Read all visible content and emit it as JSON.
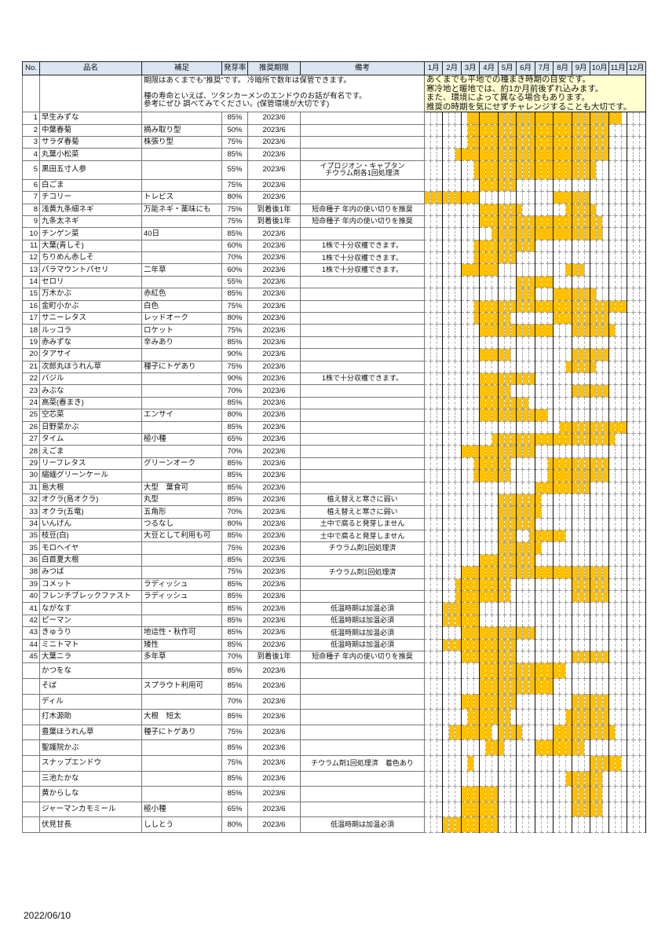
{
  "colors": {
    "sowing_fill": "#ffc000",
    "header_bg": "#dce6f1",
    "note_bg": "#ffffd0"
  },
  "headers": {
    "no": "No.",
    "name": "品名",
    "supplement": "補足",
    "germination": "発芽率",
    "expiry": "推奨期限",
    "remarks": "備考",
    "months": [
      "1月",
      "2月",
      "3月",
      "4月",
      "5月",
      "6月",
      "7月",
      "8月",
      "9月",
      "10月",
      "11月",
      "12月"
    ]
  },
  "note_left": [
    "期限はあくまでも\"推奨\"です。 冷暗所で数年は保管できます。",
    "",
    "種の寿命といえば、ツタンカーメンのエンドウのお話が有名です。",
    "参考にぜひ 調べてみてください。(保管環境が大切です)"
  ],
  "note_right": [
    "あくまでも平地での種まき時期の目安です。",
    "寒冷地と暖地では、約1か月前後ずれ込みます。",
    "また、環境によって異なる場合もあります。",
    "推奨の時期を気にせずチャレンジすることも大切です。"
  ],
  "rows": [
    {
      "no": "1",
      "name": "早生みずな",
      "sup": "",
      "germ": "85%",
      "exp": "2023/6",
      "remarks": [],
      "sow": [
        [
          "3中",
          "11中"
        ]
      ]
    },
    {
      "no": "2",
      "name": "中葉春菊",
      "sup": "摘み取り型",
      "germ": "50%",
      "exp": "2023/6",
      "remarks": [],
      "sow": [
        [
          "3中",
          "10下"
        ]
      ]
    },
    {
      "no": "3",
      "name": "サラダ春菊",
      "sup": "株張り型",
      "germ": "75%",
      "exp": "2023/6",
      "remarks": [],
      "sow": [
        [
          "3中",
          "10下"
        ]
      ]
    },
    {
      "no": "4",
      "name": "丸葉小松菜",
      "sup": "",
      "germ": "85%",
      "exp": "2023/6",
      "remarks": [],
      "sow": [
        [
          "2下",
          "10下"
        ]
      ]
    },
    {
      "no": "5",
      "name": "黒田五寸人参",
      "sup": "",
      "germ": "55%",
      "exp": "2023/6",
      "remarks": [
        "イプロジオン・キャプタン",
        "チウラム剤各1回処理済"
      ],
      "sow": [
        [
          "3下",
          "10上"
        ]
      ],
      "tall": true
    },
    {
      "no": "6",
      "name": "白ごま",
      "sup": "",
      "germ": "75%",
      "exp": "2023/6",
      "remarks": [],
      "sow": [
        [
          "4上",
          "5下"
        ]
      ]
    },
    {
      "no": "7",
      "name": "チコリー",
      "sup": "トレビス",
      "germ": "80%",
      "exp": "2023/6",
      "remarks": [],
      "sow": [
        [
          "1上",
          "3下"
        ],
        [
          "8上",
          "9下"
        ]
      ]
    },
    {
      "no": "8",
      "name": "浅黄九条細ネギ",
      "sup": "万能ネギ・薬味にも",
      "germ": "75%",
      "exp": "到着後1年",
      "remarks": [
        "短命種子 年内の使い切りを推奨"
      ],
      "sow": [
        [
          "4上",
          "6上"
        ],
        [
          "8下",
          "10上"
        ]
      ]
    },
    {
      "no": "9",
      "name": "九条太ネギ",
      "sup": "",
      "germ": "75%",
      "exp": "到着後1年",
      "remarks": [
        "短命種子 年内の使い切りを推奨"
      ],
      "sow": [
        [
          "4上",
          "10中"
        ]
      ]
    },
    {
      "no": "10",
      "name": "チンゲン菜",
      "sup": "40日",
      "germ": "85%",
      "exp": "2023/6",
      "remarks": [],
      "sow": [
        [
          "4下",
          "10中"
        ]
      ]
    },
    {
      "no": "11",
      "name": "大葉(青しそ)",
      "sup": "",
      "germ": "60%",
      "exp": "2023/6",
      "remarks": [
        "1株で十分収穫できます。"
      ],
      "sow": [
        [
          "3下",
          "6下"
        ]
      ]
    },
    {
      "no": "12",
      "name": "ちりめん赤しそ",
      "sup": "",
      "germ": "70%",
      "exp": "2023/6",
      "remarks": [
        "1株で十分収穫できます。"
      ],
      "sow": [
        [
          "3下",
          "5下"
        ]
      ]
    },
    {
      "no": "13",
      "name": "パラマウントパセリ",
      "sup": "二年草",
      "germ": "60%",
      "exp": "2023/6",
      "remarks": [
        "1株で十分収穫できます。"
      ],
      "sow": [
        [
          "3上",
          "4下"
        ],
        [
          "8下",
          "9中"
        ]
      ]
    },
    {
      "no": "14",
      "name": "セロリ",
      "sup": "",
      "germ": "55%",
      "exp": "2023/6",
      "remarks": [],
      "sow": [
        [
          "6上",
          "7下"
        ]
      ]
    },
    {
      "no": "15",
      "name": "万木かぶ",
      "sup": "赤紅色",
      "germ": "85%",
      "exp": "2023/6",
      "remarks": [],
      "sow": [
        [
          "6上",
          "6下"
        ],
        [
          "8上",
          "10上"
        ]
      ]
    },
    {
      "no": "16",
      "name": "金町小かぶ",
      "sup": "白色",
      "germ": "75%",
      "exp": "2023/6",
      "remarks": [],
      "sow": [
        [
          "3下",
          "11下"
        ]
      ]
    },
    {
      "no": "17",
      "name": "サニーレタス",
      "sup": "レッドオーク",
      "germ": "80%",
      "exp": "2023/6",
      "remarks": [],
      "sow": [
        [
          "3下",
          "5中"
        ],
        [
          "8上",
          "10下"
        ]
      ]
    },
    {
      "no": "18",
      "name": "ルッコラ",
      "sup": "ロケット",
      "germ": "75%",
      "exp": "2023/6",
      "remarks": [],
      "sow": [
        [
          "4上",
          "7下"
        ],
        [
          "9上",
          "11上"
        ]
      ]
    },
    {
      "no": "19",
      "name": "赤みずな",
      "sup": "辛みあり",
      "germ": "85%",
      "exp": "2023/6",
      "remarks": [],
      "sow": []
    },
    {
      "no": "20",
      "name": "タアサイ",
      "sup": "",
      "germ": "90%",
      "exp": "2023/6",
      "remarks": [],
      "sow": [
        [
          "4上",
          "5中"
        ],
        [
          "9上",
          "10下"
        ]
      ]
    },
    {
      "no": "21",
      "name": "次郎丸ほうれん草",
      "sup": "種子にトゲあり",
      "germ": "75%",
      "exp": "2023/6",
      "remarks": [],
      "sow": [
        [
          "8下",
          "10上"
        ]
      ]
    },
    {
      "no": "22",
      "name": "バジル",
      "sup": "",
      "germ": "90%",
      "exp": "2023/6",
      "remarks": [
        "1株で十分収穫できます。"
      ],
      "sow": [
        [
          "4上",
          "6下"
        ]
      ]
    },
    {
      "no": "23",
      "name": "みぶな",
      "sup": "",
      "germ": "70%",
      "exp": "2023/6",
      "remarks": [],
      "sow": [
        [
          "4上",
          "5中"
        ],
        [
          "9上",
          "10下"
        ]
      ]
    },
    {
      "no": "24",
      "name": "高菜(春まき)",
      "sup": "",
      "germ": "85%",
      "exp": "2023/6",
      "remarks": [],
      "sow": [
        [
          "4上",
          "6中"
        ]
      ]
    },
    {
      "no": "25",
      "name": "空芯菜",
      "sup": "エンサイ",
      "germ": "80%",
      "exp": "2023/6",
      "remarks": [],
      "sow": [
        [
          "4上",
          "7中"
        ]
      ]
    },
    {
      "no": "26",
      "name": "日野菜かぶ",
      "sup": "",
      "germ": "85%",
      "exp": "2023/6",
      "remarks": [],
      "sow": [
        [
          "8中",
          "11下"
        ]
      ]
    },
    {
      "no": "27",
      "name": "タイム",
      "sup": "極小種",
      "germ": "65%",
      "exp": "2023/6",
      "remarks": [],
      "sow": [
        [
          "4下",
          "11上"
        ]
      ]
    },
    {
      "no": "28",
      "name": "えごま",
      "sup": "",
      "germ": "70%",
      "exp": "2023/6",
      "remarks": [],
      "sow": [
        [
          "3上",
          "6下"
        ]
      ]
    },
    {
      "no": "29",
      "name": "リーフレタス",
      "sup": "グリーンオーク",
      "germ": "85%",
      "exp": "2023/6",
      "remarks": [],
      "sow": [
        [
          "3下",
          "5中"
        ],
        [
          "7下",
          "10下"
        ]
      ]
    },
    {
      "no": "30",
      "name": "縮緬グリーンケール",
      "sup": "",
      "germ": "85%",
      "exp": "2023/6",
      "remarks": [],
      "sow": [
        [
          "3下",
          "5中"
        ],
        [
          "7下",
          "10下"
        ]
      ]
    },
    {
      "no": "31",
      "name": "島大根",
      "sup": "大型　葉食可",
      "germ": "85%",
      "exp": "2023/6",
      "remarks": [],
      "sow": [
        [
          "7上",
          "9下"
        ]
      ]
    },
    {
      "no": "32",
      "name": "オクラ(島オクラ)",
      "sup": "丸型",
      "germ": "85%",
      "exp": "2023/6",
      "remarks": [
        "植え替えと寒さに弱い"
      ],
      "sow": [
        [
          "5上",
          "7上"
        ]
      ]
    },
    {
      "no": "33",
      "name": "オクラ(五竜)",
      "sup": "五角形",
      "germ": "70%",
      "exp": "2023/6",
      "remarks": [
        "植え替えと寒さに弱い"
      ],
      "sow": [
        [
          "5上",
          "7上"
        ]
      ]
    },
    {
      "no": "34",
      "name": "いんげん",
      "sup": "つるなし",
      "germ": "80%",
      "exp": "2023/6",
      "remarks": [
        "土中で腐ると発芽しません"
      ],
      "sow": [
        [
          "5上",
          "6下"
        ]
      ]
    },
    {
      "no": "35",
      "name": "枝豆(白)",
      "sup": "大豆として利用も可",
      "germ": "85%",
      "exp": "2023/6",
      "remarks": [
        "土中で腐ると発芽しません"
      ],
      "sow": [
        [
          "5上",
          "5下"
        ],
        [
          "6下",
          "8中"
        ]
      ]
    },
    {
      "no": "35",
      "name": "モロヘイヤ",
      "sup": "",
      "germ": "75%",
      "exp": "2023/6",
      "remarks": [
        "チウラム剤1回処理済"
      ],
      "sow": [
        [
          "5上",
          "7上"
        ]
      ]
    },
    {
      "no": "36",
      "name": "白首夏大根",
      "sup": "",
      "germ": "85%",
      "exp": "2023/6",
      "remarks": [],
      "sow": [
        [
          "4上",
          "6下"
        ]
      ]
    },
    {
      "no": "38",
      "name": "みつば",
      "sup": "",
      "germ": "75%",
      "exp": "2023/6",
      "remarks": [
        "チウラム剤1回処理済"
      ],
      "sow": [
        [
          "3上",
          "10下"
        ]
      ]
    },
    {
      "no": "39",
      "name": "コメット",
      "sup": "ラディッシュ",
      "germ": "85%",
      "exp": "2023/6",
      "remarks": [],
      "sow": [
        [
          "2下",
          "5中"
        ],
        [
          "9上",
          "10下"
        ]
      ]
    },
    {
      "no": "40",
      "name": "フレンチブレックファスト",
      "sup": "ラディッシュ",
      "germ": "85%",
      "exp": "2023/6",
      "remarks": [],
      "sow": [
        [
          "2下",
          "5中"
        ],
        [
          "9上",
          "10下"
        ]
      ]
    },
    {
      "no": "41",
      "name": "ながなす",
      "sup": "",
      "germ": "85%",
      "exp": "2023/6",
      "remarks": [
        "低温時期は加温必須"
      ],
      "sow": [
        [
          "2上",
          "3下"
        ]
      ]
    },
    {
      "no": "42",
      "name": "ピーマン",
      "sup": "",
      "germ": "85%",
      "exp": "2023/6",
      "remarks": [
        "低温時期は加温必須"
      ],
      "sow": [
        [
          "2上",
          "3下"
        ]
      ]
    },
    {
      "no": "43",
      "name": "きゅうり",
      "sup": "地這性・秋作可",
      "germ": "85%",
      "exp": "2023/6",
      "remarks": [
        "低温時期は加温必須"
      ],
      "sow": [
        [
          "3上",
          "6下"
        ]
      ]
    },
    {
      "no": "44",
      "name": "ミニトマト",
      "sup": "矮性",
      "germ": "85%",
      "exp": "2023/6",
      "remarks": [
        "低温時期は加温必須"
      ],
      "sow": [
        [
          "2上",
          "5下"
        ]
      ]
    },
    {
      "no": "45",
      "name": "大葉ニラ",
      "sup": "多年草",
      "germ": "70%",
      "exp": "到着後1年",
      "remarks": [
        "短命種子 年内の使い切りを推奨"
      ],
      "sow": [
        [
          "3上",
          "5下"
        ],
        [
          "9上",
          "10下"
        ]
      ]
    },
    {
      "no": "",
      "name": "かつをな",
      "sup": "",
      "germ": "85%",
      "exp": "2023/6",
      "remarks": [],
      "sow": [
        [
          "4上",
          "8中"
        ]
      ],
      "big": true
    },
    {
      "no": "",
      "name": "そば",
      "sup": "スプラウト利用可",
      "germ": "85%",
      "exp": "2023/6",
      "remarks": [],
      "sow": [
        [
          "4上",
          "7下"
        ]
      ],
      "big": true
    },
    {
      "no": "",
      "name": "ディル",
      "sup": "",
      "germ": "70%",
      "exp": "2023/6",
      "remarks": [],
      "sow": [
        [
          "3上",
          "5下"
        ],
        [
          "9上",
          "10下"
        ]
      ],
      "big": true
    },
    {
      "no": "",
      "name": "打木源助",
      "sup": "大根　短太",
      "germ": "85%",
      "exp": "2023/6",
      "remarks": [],
      "sow": [
        [
          "3中",
          "5中"
        ],
        [
          "8下",
          "10下"
        ]
      ],
      "big": true
    },
    {
      "no": "",
      "name": "豊葉ほうれん草",
      "sup": "種子にトゲあり",
      "germ": "75%",
      "exp": "2023/6",
      "remarks": [],
      "sow": [
        [
          "2中",
          "4中"
        ],
        [
          "5上",
          "6上"
        ],
        [
          "8上",
          "11上"
        ]
      ],
      "big": true
    },
    {
      "no": "",
      "name": "聖護院かぶ",
      "sup": "",
      "germ": "85%",
      "exp": "2023/6",
      "remarks": [],
      "sow": [
        [
          "4中",
          "5上"
        ],
        [
          "7上",
          "9中"
        ]
      ],
      "big": true
    },
    {
      "no": "",
      "name": "スナップエンドウ",
      "sup": "",
      "germ": "75%",
      "exp": "2023/6",
      "remarks": [
        "チウラム剤1回処理済　着色あり"
      ],
      "sow": [
        [
          "3中",
          "3中"
        ],
        [
          "10上",
          "11中"
        ]
      ],
      "big": true
    },
    {
      "no": "",
      "name": "三池たかな",
      "sup": "",
      "germ": "85%",
      "exp": "2023/6",
      "remarks": [],
      "sow": [
        [
          "8下",
          "10中"
        ]
      ],
      "big": true
    },
    {
      "no": "",
      "name": "黄からしな",
      "sup": "",
      "germ": "85%",
      "exp": "2023/6",
      "remarks": [],
      "sow": [
        [
          "3上",
          "4下"
        ],
        [
          "9上",
          "10中"
        ]
      ],
      "big": true
    },
    {
      "no": "",
      "name": "ジャーマンカモミール",
      "sup": "極小種",
      "germ": "65%",
      "exp": "2023/6",
      "remarks": [],
      "sow": [
        [
          "3上",
          "4下"
        ],
        [
          "9上",
          "10中"
        ]
      ],
      "big": true
    },
    {
      "no": "",
      "name": "伏見甘長",
      "sup": "ししとう",
      "germ": "80%",
      "exp": "2023/6",
      "remarks": [
        "低温時期は加温必須"
      ],
      "sow": [
        [
          "2上",
          "4下"
        ]
      ],
      "big": true
    }
  ],
  "footer_date": "2022/06/10"
}
